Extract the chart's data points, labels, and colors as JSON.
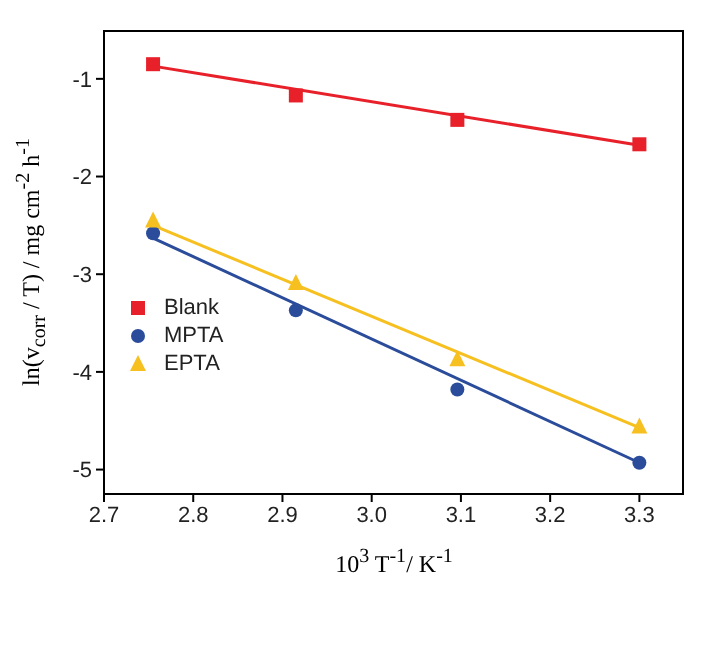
{
  "chart_data": {
    "type": "scatter",
    "xlabel": "10$^{3}$ T$^{-1}$/ K$^{-1}$",
    "ylabel": "ln(v$_{corr}$ / T) / mg cm$^{-2}$ h$^{-1}$",
    "xlim": [
      2.7,
      3.35
    ],
    "xticks": [
      2.7,
      2.8,
      2.9,
      {
        "value": 3.0,
        "label": "3.0"
      },
      3.1,
      3.2,
      3.3
    ],
    "ylim": [
      -5.25,
      -0.5
    ],
    "yticks": [
      -5,
      -4,
      -3,
      -2,
      -1
    ],
    "grid": false,
    "legend": "bottom left",
    "series": [
      {
        "name": "Blank",
        "marker": "square",
        "color": "#e8202a",
        "x": [
          2.755,
          2.915,
          3.096,
          3.3
        ],
        "values": [
          -0.85,
          -1.17,
          -1.42,
          -1.67
        ]
      },
      {
        "name": "MPTA",
        "marker": "circle",
        "color": "#2a4c9a",
        "x": [
          2.755,
          2.915,
          3.096,
          3.3
        ],
        "values": [
          -2.58,
          -3.37,
          -4.18,
          -4.93
        ]
      },
      {
        "name": "EPTA",
        "marker": "triangle",
        "color": "#f7c021",
        "x": [
          2.755,
          2.915,
          3.096,
          3.3
        ],
        "values": [
          -2.45,
          -3.09,
          -3.87,
          -4.56
        ]
      },
      {
        "type": "line",
        "marker": "none",
        "color": "#e8202a",
        "x": [
          2.755,
          3.3
        ],
        "values": [
          -0.87,
          -1.68
        ]
      },
      {
        "type": "line",
        "marker": "none",
        "color": "#2a4c9a",
        "x": [
          2.755,
          3.3
        ],
        "values": [
          -2.63,
          -4.93
        ]
      },
      {
        "type": "line",
        "marker": "none",
        "color": "#f7c021",
        "x": [
          2.755,
          3.3
        ],
        "values": [
          -2.5,
          -4.57
        ]
      }
    ]
  }
}
